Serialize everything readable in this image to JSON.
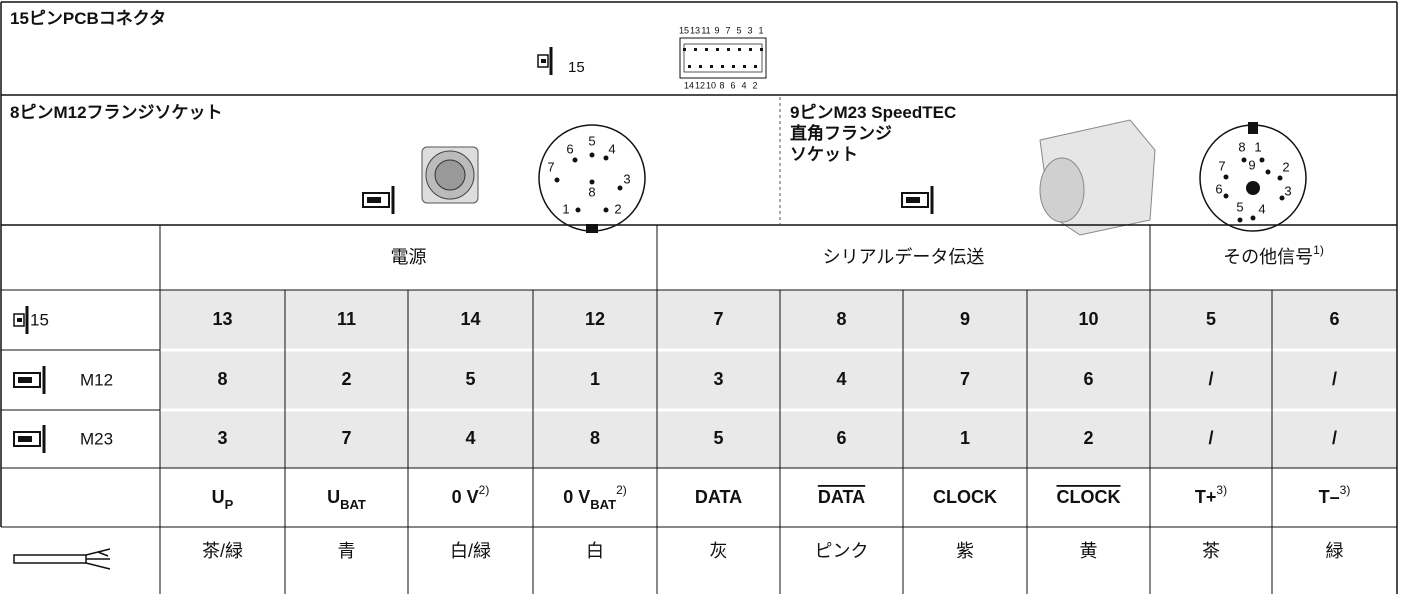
{
  "pcb": {
    "title": "15ピンPCBコネクタ",
    "icon_label": "15",
    "pins_top": [
      "15",
      "13",
      "11",
      "9",
      "7",
      "5",
      "3",
      "1"
    ],
    "pins_bottom": [
      "14",
      "12",
      "10",
      "8",
      "6",
      "4",
      "2"
    ]
  },
  "m12": {
    "title": "8ピンM12フランジソケット",
    "pins": [
      "1",
      "2",
      "3",
      "4",
      "5",
      "6",
      "7",
      "8"
    ]
  },
  "m23": {
    "title_lines": [
      "9ピンM23 SpeedTEC",
      "直角フランジ",
      "ソケット"
    ],
    "pins": [
      "1",
      "2",
      "3",
      "4",
      "5",
      "6",
      "7",
      "8",
      "9"
    ]
  },
  "table": {
    "groups": [
      {
        "text": "電源"
      },
      {
        "text": "シリアルデータ伝送"
      },
      {
        "text": "その他信号",
        "sup": "1)"
      }
    ],
    "rows": [
      {
        "label": "15",
        "cells": [
          "13",
          "11",
          "14",
          "12",
          "7",
          "8",
          "9",
          "10",
          "5",
          "6"
        ]
      },
      {
        "label": "M12",
        "cells": [
          "8",
          "2",
          "5",
          "1",
          "3",
          "4",
          "7",
          "6",
          "/",
          "/"
        ]
      },
      {
        "label": "M23",
        "cells": [
          "3",
          "7",
          "4",
          "8",
          "5",
          "6",
          "1",
          "2",
          "/",
          "/"
        ]
      }
    ],
    "signals": [
      {
        "text": "U",
        "sub": "P"
      },
      {
        "text": "U",
        "sub": "BAT"
      },
      {
        "text": "0 V",
        "sup": "2)"
      },
      {
        "text": "0 V",
        "sub": "BAT",
        "sup": "2)"
      },
      {
        "text": "DATA"
      },
      {
        "text": "DATA",
        "overline": true
      },
      {
        "text": "CLOCK"
      },
      {
        "text": "CLOCK",
        "overline": true
      },
      {
        "text": "T+",
        "sup": "3)"
      },
      {
        "text": "T–",
        "sup": "3)"
      }
    ],
    "colors": [
      "茶/緑",
      "青",
      "白/緑",
      "白",
      "灰",
      "ピンク",
      "紫",
      "黄",
      "茶",
      "緑"
    ]
  }
}
